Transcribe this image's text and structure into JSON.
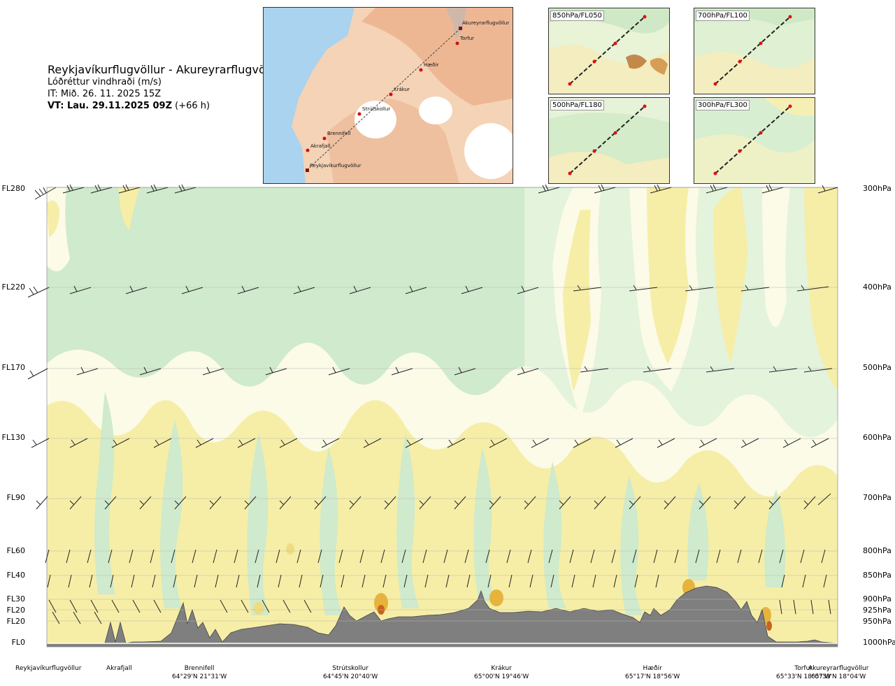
{
  "title": {
    "route": "Reykjavíkurflugvöllur - Akureyrarflugvöllur",
    "variable": "Lóðréttur vindhraði (m/s)",
    "issue_time": "IT: Mið. 26. 11. 2025 15Z",
    "valid_label": "VT: Lau. 29.11.2025 09Z",
    "valid_offset": "(+66 h)"
  },
  "map": {
    "route_points": [
      "Akureyrarflugvöllur",
      "Torfur",
      "Hæðir",
      "Krákur",
      "Strútskollur",
      "Brennifell",
      "Akrafjall",
      "Reykjavíkurflugvöllur"
    ]
  },
  "insets": [
    {
      "label": "850hPa/FL050"
    },
    {
      "label": "700hPa/FL100"
    },
    {
      "label": "500hPa/FL180"
    },
    {
      "label": "300hPa/FL300"
    }
  ],
  "chart_data": {
    "type": "heatmap",
    "title": "Reykjavíkurflugvöllur - Akureyrarflugvöllur",
    "variable": "Lóðréttur vindhraði (m/s)",
    "flight_levels": [
      "FL280",
      "FL220",
      "FL170",
      "FL130",
      "FL90",
      "FL60",
      "FL40",
      "FL30",
      "FL20",
      "FL20",
      "FL0"
    ],
    "pressure_levels": [
      "300hPa",
      "400hPa",
      "500hPa",
      "600hPa",
      "700hPa",
      "800hPa",
      "850hPa",
      "900hPa",
      "925hPa",
      "950hPa",
      "1000hPa"
    ],
    "stations": [
      {
        "name": "Reykjavíkurflugvöllur",
        "coord": ""
      },
      {
        "name": "Akrafjall",
        "coord": ""
      },
      {
        "name": "Brennifell",
        "coord": "64°29'N 21°31'W"
      },
      {
        "name": "Strútskollur",
        "coord": "64°45'N 20°40'W"
      },
      {
        "name": "Krákur",
        "coord": "65°00'N 19°46'W"
      },
      {
        "name": "Hæðir",
        "coord": "65°17'N 18°56'W"
      },
      {
        "name": "Torfur",
        "coord": "65°33'N 18°07'W"
      },
      {
        "name": "Akureyrarflugvöllur",
        "coord": "65°39'N 18°04'W"
      }
    ],
    "colors": {
      "downdraft_weak": "#cfeacc",
      "downdraft_pale": "#e6f4df",
      "neutral": "#fbfbe8",
      "updraft_weak": "#f6eea6",
      "updraft_mod": "#efdc80",
      "updraft_strong": "#e8b33a",
      "updraft_max": "#c8641e",
      "terrain": "#7f7f7f"
    },
    "grid": true
  }
}
